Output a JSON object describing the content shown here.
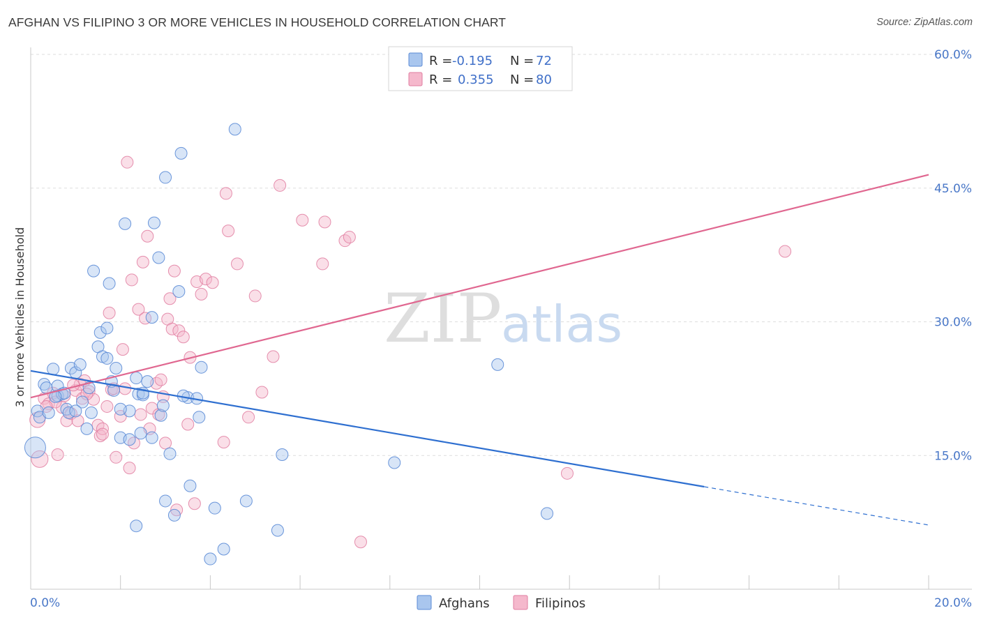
{
  "header": {
    "title": "AFGHAN VS FILIPINO 3 OR MORE VEHICLES IN HOUSEHOLD CORRELATION CHART",
    "source": "Source: ZipAtlas.com"
  },
  "legend": {
    "r_label": "R =",
    "n_label": "N =",
    "series": [
      {
        "r": "-0.195",
        "n": "72"
      },
      {
        "r": "0.355",
        "n": "80"
      }
    ]
  },
  "watermark": {
    "zip": "ZIP",
    "atlas": "atlas"
  },
  "colors": {
    "afghans_fill": "#a9c6ee",
    "afghans_stroke": "#5b8bd6",
    "afghans_line": "#2e6fd0",
    "filipinos_fill": "#f5b8cc",
    "filipinos_stroke": "#e07ca0",
    "filipinos_line": "#e06790",
    "tick_label": "#4a78c8"
  },
  "chart_data": {
    "type": "scatter",
    "title": "AFGHAN VS FILIPINO 3 OR MORE VEHICLES IN HOUSEHOLD CORRELATION CHART",
    "xlabel": "",
    "ylabel": "3 or more Vehicles in Household",
    "xlim": [
      0,
      20
    ],
    "ylim": [
      0,
      60
    ],
    "x_tick_labels": [
      "0.0%",
      "20.0%"
    ],
    "y_ticks": [
      15,
      30,
      45,
      60
    ],
    "y_tick_labels": [
      "15.0%",
      "30.0%",
      "45.0%",
      "60.0%"
    ],
    "grid": true,
    "legend_position": "top-center",
    "series": [
      {
        "name": "Afghans",
        "r": -0.195,
        "n": 72,
        "trend": {
          "x0": 0,
          "y0": 24.5,
          "x1": 15.0,
          "y1": 11.5,
          "dashed_to_x": 20,
          "dashed_to_y": 7.2
        },
        "points": [
          [
            0.1,
            15.9
          ],
          [
            0.15,
            20.0
          ],
          [
            0.2,
            19.3
          ],
          [
            0.3,
            23.0
          ],
          [
            0.35,
            22.6
          ],
          [
            0.4,
            19.8
          ],
          [
            0.5,
            24.7
          ],
          [
            0.6,
            21.7
          ],
          [
            0.6,
            22.8
          ],
          [
            0.7,
            21.9
          ],
          [
            0.75,
            22.0
          ],
          [
            0.8,
            20.2
          ],
          [
            0.85,
            19.8
          ],
          [
            0.9,
            24.8
          ],
          [
            1.0,
            24.3
          ],
          [
            1.1,
            25.2
          ],
          [
            1.15,
            21.0
          ],
          [
            1.3,
            22.6
          ],
          [
            1.35,
            19.8
          ],
          [
            1.4,
            35.7
          ],
          [
            1.5,
            27.2
          ],
          [
            1.55,
            28.8
          ],
          [
            1.6,
            26.1
          ],
          [
            1.7,
            29.3
          ],
          [
            1.7,
            25.9
          ],
          [
            1.75,
            34.3
          ],
          [
            1.8,
            23.3
          ],
          [
            1.9,
            24.8
          ],
          [
            2.0,
            17.0
          ],
          [
            2.1,
            41.0
          ],
          [
            2.2,
            16.8
          ],
          [
            2.35,
            23.7
          ],
          [
            2.4,
            21.9
          ],
          [
            2.45,
            17.5
          ],
          [
            2.5,
            21.8
          ],
          [
            2.6,
            23.3
          ],
          [
            2.7,
            30.5
          ],
          [
            2.75,
            41.1
          ],
          [
            2.85,
            37.2
          ],
          [
            2.9,
            19.5
          ],
          [
            2.95,
            20.6
          ],
          [
            3.0,
            46.2
          ],
          [
            3.1,
            15.2
          ],
          [
            3.3,
            33.4
          ],
          [
            3.35,
            48.9
          ],
          [
            3.5,
            21.5
          ],
          [
            3.55,
            11.6
          ],
          [
            3.7,
            21.4
          ],
          [
            3.75,
            19.3
          ],
          [
            3.8,
            24.9
          ],
          [
            4.1,
            9.1
          ],
          [
            4.3,
            4.5
          ],
          [
            4.55,
            51.6
          ],
          [
            4.8,
            9.9
          ],
          [
            5.5,
            6.6
          ],
          [
            5.6,
            15.1
          ],
          [
            8.1,
            14.2
          ],
          [
            10.4,
            25.2
          ],
          [
            11.5,
            8.5
          ],
          [
            2.2,
            20.0
          ],
          [
            1.0,
            20.0
          ],
          [
            3.2,
            8.3
          ],
          [
            2.35,
            7.1
          ],
          [
            4.0,
            3.4
          ],
          [
            2.7,
            17.0
          ],
          [
            3.0,
            9.9
          ],
          [
            1.85,
            22.3
          ],
          [
            1.25,
            18.0
          ],
          [
            2.0,
            20.2
          ],
          [
            0.55,
            21.6
          ],
          [
            2.5,
            22.0
          ],
          [
            3.4,
            21.7
          ]
        ]
      },
      {
        "name": "Filipinos",
        "r": 0.355,
        "n": 80,
        "trend": {
          "x0": 0,
          "y0": 21.5,
          "x1": 20,
          "y1": 46.5
        },
        "points": [
          [
            0.15,
            19.0
          ],
          [
            0.2,
            14.6
          ],
          [
            0.3,
            21.4
          ],
          [
            0.4,
            20.8
          ],
          [
            0.5,
            22.0
          ],
          [
            0.6,
            15.1
          ],
          [
            0.7,
            20.4
          ],
          [
            0.75,
            21.7
          ],
          [
            0.8,
            18.9
          ],
          [
            0.9,
            19.7
          ],
          [
            1.0,
            22.3
          ],
          [
            1.05,
            18.9
          ],
          [
            1.1,
            23.0
          ],
          [
            1.15,
            21.4
          ],
          [
            1.2,
            23.4
          ],
          [
            1.3,
            22.2
          ],
          [
            1.4,
            21.3
          ],
          [
            1.5,
            18.4
          ],
          [
            1.55,
            17.2
          ],
          [
            1.6,
            18.0
          ],
          [
            1.7,
            20.5
          ],
          [
            1.75,
            31.0
          ],
          [
            1.8,
            22.4
          ],
          [
            1.9,
            14.8
          ],
          [
            2.0,
            19.4
          ],
          [
            2.05,
            26.9
          ],
          [
            2.1,
            22.5
          ],
          [
            2.15,
            47.9
          ],
          [
            2.2,
            13.6
          ],
          [
            2.25,
            34.7
          ],
          [
            2.3,
            16.4
          ],
          [
            2.4,
            31.4
          ],
          [
            2.45,
            19.6
          ],
          [
            2.5,
            36.7
          ],
          [
            2.55,
            30.4
          ],
          [
            2.6,
            39.6
          ],
          [
            2.65,
            18.0
          ],
          [
            2.7,
            20.3
          ],
          [
            2.8,
            23.1
          ],
          [
            2.85,
            19.6
          ],
          [
            2.9,
            23.5
          ],
          [
            2.95,
            21.6
          ],
          [
            3.0,
            16.4
          ],
          [
            3.05,
            30.3
          ],
          [
            3.1,
            32.6
          ],
          [
            3.15,
            29.2
          ],
          [
            3.2,
            35.7
          ],
          [
            3.25,
            8.9
          ],
          [
            3.3,
            29.0
          ],
          [
            3.4,
            28.3
          ],
          [
            3.5,
            18.5
          ],
          [
            3.55,
            26.0
          ],
          [
            3.65,
            9.6
          ],
          [
            3.7,
            34.5
          ],
          [
            3.8,
            33.1
          ],
          [
            3.9,
            34.8
          ],
          [
            4.05,
            34.4
          ],
          [
            4.3,
            16.5
          ],
          [
            4.35,
            44.4
          ],
          [
            4.4,
            40.2
          ],
          [
            4.6,
            36.5
          ],
          [
            4.85,
            19.3
          ],
          [
            5.0,
            32.9
          ],
          [
            5.15,
            22.1
          ],
          [
            5.4,
            26.1
          ],
          [
            5.55,
            45.3
          ],
          [
            6.05,
            41.4
          ],
          [
            6.5,
            36.5
          ],
          [
            6.55,
            41.2
          ],
          [
            7.0,
            39.1
          ],
          [
            7.1,
            39.5
          ],
          [
            7.35,
            5.3
          ],
          [
            11.95,
            13.0
          ],
          [
            16.8,
            37.9
          ],
          [
            0.55,
            21.0
          ],
          [
            0.35,
            20.5
          ],
          [
            1.25,
            21.9
          ],
          [
            1.85,
            22.5
          ],
          [
            0.95,
            22.9
          ],
          [
            1.6,
            17.4
          ]
        ]
      }
    ]
  },
  "bottom_legend": {
    "items": [
      {
        "label": "Afghans"
      },
      {
        "label": "Filipinos"
      }
    ]
  }
}
